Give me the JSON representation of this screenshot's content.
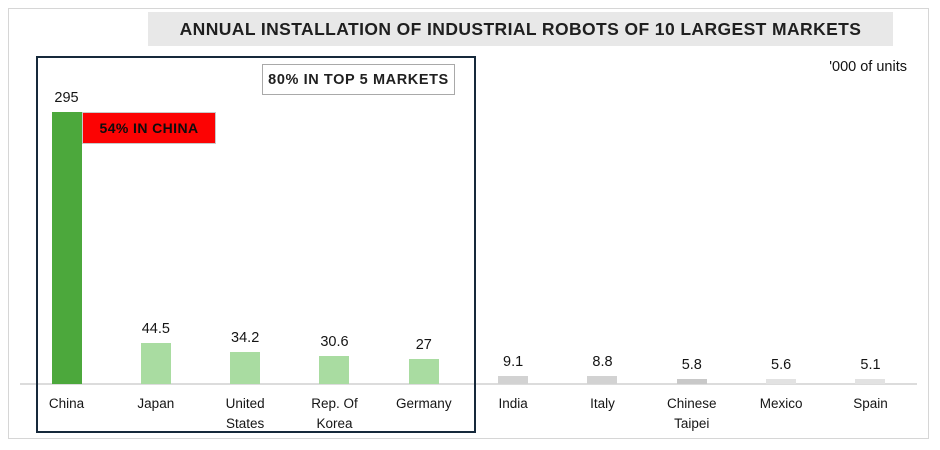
{
  "header": {
    "title": "ANNUAL INSTALLATION OF INDUSTRIAL ROBOTS OF 10 LARGEST MARKETS",
    "units_note": "'000 of units"
  },
  "annotations": {
    "top5_label": "80% IN TOP 5 MARKETS",
    "china_label": "54% IN CHINA"
  },
  "colors": {
    "china_bar": "#4CA83C",
    "top5_bar": "#A9DCA1",
    "china_callout_bg": "#FC0303",
    "top5_box_border": "#16293B",
    "title_band_bg": "#E8E8E8",
    "axis_line": "#DCDCDC"
  },
  "chart_data": {
    "type": "bar",
    "title": "ANNUAL INSTALLATION OF INDUSTRIAL ROBOTS OF 10 LARGEST MARKETS",
    "unit": "'000 of units",
    "xlabel": "",
    "ylabel": "",
    "ylim": [
      0,
      320
    ],
    "grid": false,
    "legend": false,
    "categories": [
      "China",
      "Japan",
      "United States",
      "Rep. Of Korea",
      "Germany",
      "India",
      "Italy",
      "Chinese Taipei",
      "Mexico",
      "Spain"
    ],
    "values": [
      295,
      44.5,
      34.2,
      30.6,
      27,
      9.1,
      8.8,
      5.8,
      5.6,
      5.1
    ],
    "annotations_text": [
      "80% IN TOP 5 MARKETS",
      "54% IN CHINA"
    ],
    "markets": [
      {
        "name": "China",
        "label": "China",
        "value": 295,
        "value_label": "295",
        "color": "#4CA83C"
      },
      {
        "name": "Japan",
        "label": "Japan",
        "value": 44.5,
        "value_label": "44.5",
        "color": "#A9DCA1"
      },
      {
        "name": "United States",
        "label": "United\nStates",
        "value": 34.2,
        "value_label": "34.2",
        "color": "#A9DCA1"
      },
      {
        "name": "Rep. Of Korea",
        "label": "Rep. Of\nKorea",
        "value": 30.6,
        "value_label": "30.6",
        "color": "#A9DCA1"
      },
      {
        "name": "Germany",
        "label": "Germany",
        "value": 27,
        "value_label": "27",
        "color": "#A9DCA1"
      },
      {
        "name": "India",
        "label": "India",
        "value": 9.1,
        "value_label": "9.1",
        "color": "#D2D2D2"
      },
      {
        "name": "Italy",
        "label": "Italy",
        "value": 8.8,
        "value_label": "8.8",
        "color": "#D2D2D2"
      },
      {
        "name": "Chinese Taipei",
        "label": "Chinese\nTaipei",
        "value": 5.8,
        "value_label": "5.8",
        "color": "#C8C8C8"
      },
      {
        "name": "Mexico",
        "label": "Mexico",
        "value": 5.6,
        "value_label": "5.6",
        "color": "#E2E2E2"
      },
      {
        "name": "Spain",
        "label": "Spain",
        "value": 5.1,
        "value_label": "5.1",
        "color": "#E2E2E2"
      }
    ]
  }
}
